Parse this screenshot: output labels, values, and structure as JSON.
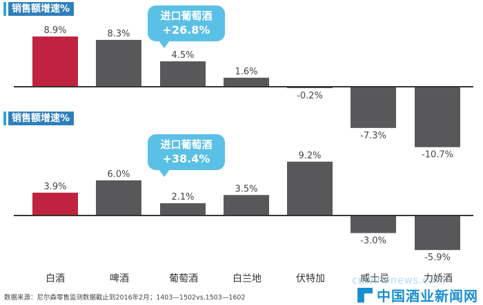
{
  "chart_data": [
    {
      "type": "bar",
      "title": "销售额增速%",
      "categories": [
        "白酒",
        "啤酒",
        "葡萄酒",
        "白兰地",
        "伏特加",
        "威士忌",
        "力娇酒"
      ],
      "values": [
        8.9,
        8.3,
        4.5,
        1.6,
        -0.2,
        -7.3,
        -10.7
      ],
      "labels": [
        "8.9%",
        "8.3%",
        "4.5%",
        "1.6%",
        "-0.2%",
        "-7.3%",
        "-10.7%"
      ],
      "highlight_index": 0,
      "callout": {
        "line1": "进口葡萄酒",
        "line2": "+26.8%"
      }
    },
    {
      "type": "bar",
      "title": "销售额增速%",
      "categories": [
        "白酒",
        "啤酒",
        "葡萄酒",
        "白兰地",
        "伏特加",
        "威士忌",
        "力娇酒"
      ],
      "values": [
        3.9,
        6.0,
        2.1,
        3.5,
        9.2,
        -3.0,
        -5.9
      ],
      "labels": [
        "3.9%",
        "6.0%",
        "2.1%",
        "3.5%",
        "9.2%",
        "-3.0%",
        "-5.9%"
      ],
      "highlight_index": 0,
      "callout": {
        "line1": "进口葡萄酒",
        "line2": "+38.4%"
      }
    }
  ],
  "categories": [
    "白酒",
    "啤酒",
    "葡萄酒",
    "白兰地",
    "伏特加",
    "威士忌",
    "力娇酒"
  ],
  "source": "数据来源：尼尔森零售监测数据截止到2016年2月；1403—1502vs.1503—1602",
  "watermark": {
    "url": "cnwinenews.com",
    "name": "中国酒业新闻网"
  },
  "colors": {
    "highlight": "#c0223f",
    "bar": "#58585a",
    "title_bg": "#2f7fba",
    "callout": "#5bc0e6",
    "axis": "#333333"
  }
}
